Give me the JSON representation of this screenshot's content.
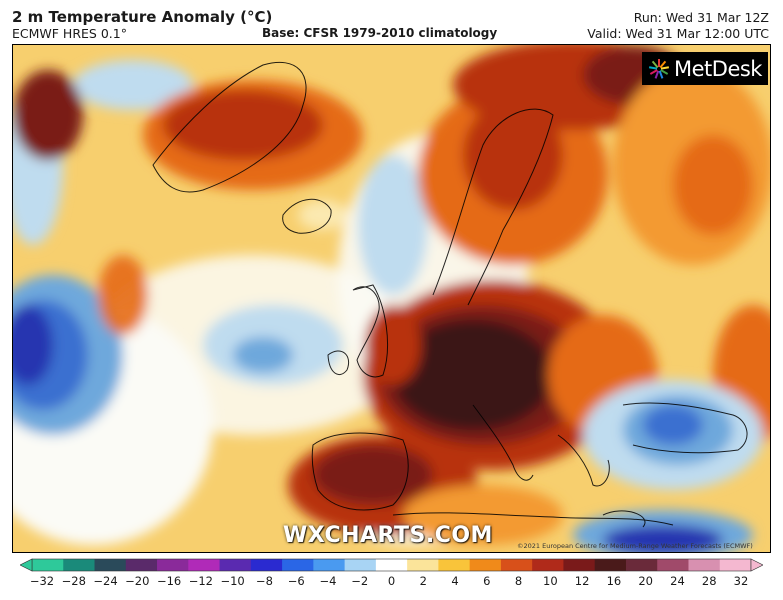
{
  "header": {
    "title": "2 m Temperature Anomaly (°C)",
    "model": "ECMWF HRES 0.1°",
    "base": "Base: CFSR 1979-2010 climatology",
    "run": "Run: Wed 31 Mar 12Z",
    "valid": "Valid: Wed 31 Mar 12:00 UTC"
  },
  "logo": {
    "text": "MetDesk"
  },
  "watermark": "WXCHARTS.COM",
  "copyright": "©2021 European Centre for Medium-Range Weather Forecasts (ECMWF)",
  "legend": {
    "ticks": [
      "−32",
      "−28",
      "−24",
      "−20",
      "−16",
      "−12",
      "−10",
      "−8",
      "−6",
      "−4",
      "−2",
      "0",
      "2",
      "4",
      "6",
      "8",
      "10",
      "12",
      "16",
      "20",
      "24",
      "28",
      "32"
    ],
    "colors": [
      "#2ec99a",
      "#1a8a7a",
      "#2a4a5a",
      "#5a2a6a",
      "#8a2a9a",
      "#b02ab8",
      "#5a2ab0",
      "#2a2ad0",
      "#2a66e6",
      "#4a9af0",
      "#a8d4f4",
      "#ffffff",
      "#fbe49a",
      "#f9c43a",
      "#f08a1a",
      "#d8501a",
      "#b02a1a",
      "#7a1a1a",
      "#4a1a1a",
      "#6a2a3a",
      "#a04a6a",
      "#d890b0",
      "#f4b8d0"
    ]
  },
  "colors": {
    "very_hot": "#3a1414",
    "hot": "#7a1a12",
    "warm_red": "#b8320f",
    "orange": "#e56a14",
    "light_orange": "#f39a32",
    "yellow": "#f7cf6e",
    "pale": "#fbe9b0",
    "white": "#fbfbf6",
    "light_blue": "#bfdcef",
    "mid_blue": "#6ea8dc",
    "blue": "#3b6fd0",
    "deep_blue": "#2535b0"
  }
}
